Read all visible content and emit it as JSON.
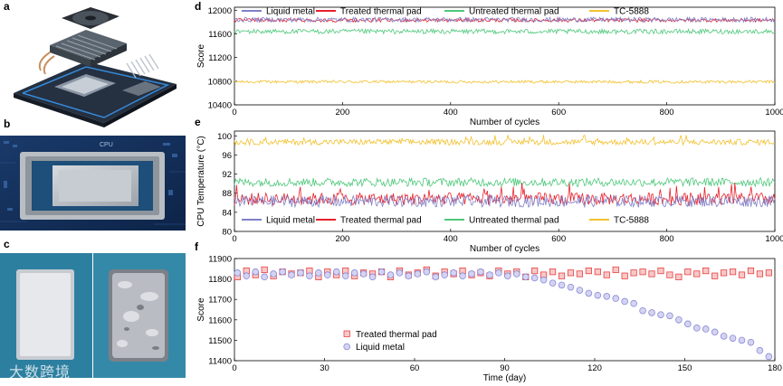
{
  "panels": {
    "a": {
      "letter": "a"
    },
    "b": {
      "letter": "b"
    },
    "c": {
      "letter": "c"
    },
    "d": {
      "letter": "d"
    },
    "e": {
      "letter": "e"
    },
    "f": {
      "letter": "f"
    }
  },
  "photo_b": {
    "label_text": "CPU"
  },
  "watermark": {
    "text": "大数跨境"
  },
  "colors": {
    "liquid_metal": "#8080c8",
    "treated_pad": "#e8202a",
    "untreated_pad": "#4dc87a",
    "tc5888": "#f2c12e",
    "f_treated": "#e84040",
    "f_liquid": "#8a8ad8"
  },
  "chart_data": [
    {
      "id": "d",
      "type": "line",
      "xlabel": "Number of cycles",
      "ylabel": "Score",
      "xlim": [
        0,
        1000
      ],
      "ylim": [
        10400,
        12050
      ],
      "xticks": [
        0,
        200,
        400,
        600,
        800,
        1000
      ],
      "yticks": [
        10400,
        10800,
        11200,
        11600,
        12000
      ],
      "legend_position": "top",
      "series": [
        {
          "name": "Liquid metal",
          "mean": 11840,
          "noise": 40
        },
        {
          "name": "Treated thermal pad",
          "mean": 11830,
          "noise": 30
        },
        {
          "name": "Untreated thermal pad",
          "mean": 11640,
          "noise": 40
        },
        {
          "name": "TC-5888",
          "mean": 10790,
          "noise": 25
        }
      ]
    },
    {
      "id": "e",
      "type": "line",
      "xlabel": "Number of cycles",
      "ylabel": "CPU Temperature (°C)",
      "xlim": [
        0,
        1000
      ],
      "ylim": [
        80,
        101
      ],
      "xticks": [
        0,
        200,
        400,
        600,
        800,
        1000
      ],
      "yticks": [
        80,
        84,
        88,
        92,
        96,
        100
      ],
      "legend_position": "bottom",
      "series": [
        {
          "name": "Liquid metal",
          "mean": 86.3,
          "noise": 1.2
        },
        {
          "name": "Treated thermal pad",
          "mean": 86.8,
          "noise": 1.3
        },
        {
          "name": "Untreated thermal pad",
          "mean": 90.3,
          "noise": 0.9
        },
        {
          "name": "TC-5888",
          "mean": 98.7,
          "noise": 0.6
        }
      ]
    },
    {
      "id": "f",
      "type": "scatter",
      "xlabel": "Time (day)",
      "ylabel": "Score",
      "xlim": [
        0,
        180
      ],
      "ylim": [
        11400,
        11900
      ],
      "xticks": [
        0,
        30,
        60,
        90,
        120,
        150,
        180
      ],
      "yticks": [
        11400,
        11500,
        11600,
        11700,
        11800,
        11900
      ],
      "legend_position": "bottom-left",
      "series": [
        {
          "name": "Treated thermal pad",
          "marker": "square",
          "x": [
            1,
            4,
            7,
            10,
            13,
            16,
            19,
            22,
            25,
            28,
            31,
            34,
            37,
            40,
            43,
            46,
            49,
            52,
            55,
            58,
            61,
            64,
            67,
            70,
            73,
            76,
            79,
            82,
            85,
            88,
            91,
            94,
            97,
            100,
            103,
            106,
            109,
            112,
            115,
            118,
            121,
            124,
            127,
            130,
            133,
            136,
            139,
            142,
            145,
            148,
            151,
            154,
            157,
            160,
            163,
            166,
            169,
            172,
            175,
            178
          ],
          "y": [
            11810,
            11840,
            11820,
            11845,
            11815,
            11835,
            11825,
            11830,
            11840,
            11810,
            11835,
            11820,
            11840,
            11815,
            11830,
            11825,
            11835,
            11810,
            11840,
            11820,
            11830,
            11845,
            11815,
            11835,
            11825,
            11840,
            11820,
            11830,
            11815,
            11840,
            11825,
            11835,
            11810,
            11840,
            11820,
            11835,
            11815,
            11830,
            11825,
            11840,
            11835,
            11820,
            11845,
            11815,
            11830,
            11835,
            11825,
            11840,
            11820,
            11810,
            11835,
            11825,
            11840,
            11815,
            11830,
            11835,
            11820,
            11840,
            11825,
            11830
          ]
        },
        {
          "name": "Liquid metal",
          "marker": "circle",
          "x": [
            1,
            4,
            7,
            10,
            13,
            16,
            19,
            22,
            25,
            28,
            31,
            34,
            37,
            40,
            43,
            46,
            49,
            52,
            55,
            58,
            61,
            64,
            67,
            70,
            73,
            76,
            79,
            82,
            85,
            88,
            91,
            94,
            97,
            100,
            103,
            106,
            109,
            112,
            115,
            118,
            121,
            124,
            127,
            130,
            133,
            136,
            139,
            142,
            145,
            148,
            151,
            154,
            157,
            160,
            163,
            166,
            169,
            172,
            175,
            178
          ],
          "y": [
            11830,
            11815,
            11835,
            11810,
            11825,
            11835,
            11820,
            11830,
            11815,
            11830,
            11820,
            11835,
            11815,
            11830,
            11825,
            11810,
            11835,
            11820,
            11830,
            11815,
            11825,
            11835,
            11810,
            11820,
            11830,
            11815,
            11825,
            11835,
            11820,
            11830,
            11815,
            11825,
            11810,
            11805,
            11795,
            11780,
            11770,
            11760,
            11745,
            11730,
            11720,
            11715,
            11705,
            11690,
            11680,
            11645,
            11635,
            11625,
            11620,
            11600,
            11580,
            11560,
            11555,
            11540,
            11520,
            11510,
            11500,
            11490,
            11450,
            11420
          ]
        }
      ]
    }
  ]
}
